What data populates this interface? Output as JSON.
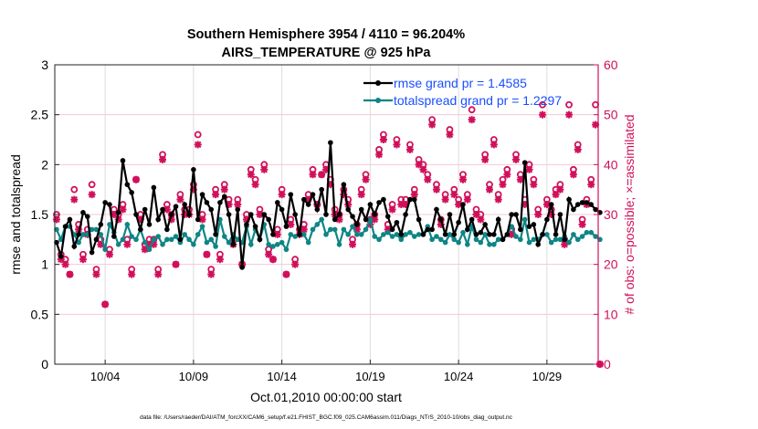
{
  "chart_data": {
    "type": "line",
    "title": [
      "Southern Hemisphere 3954 / 4110 = 96.204%",
      "AIRS_TEMPERATURE @ 925 hPa"
    ],
    "xlabel": "Oct.01,2010 00:00:00 start",
    "ylabel": "rmse and totalspread",
    "y2label": "# of obs: o=possible; ×=assimilated",
    "footnote": "data file: /Users/raeder/DAI/ATM_forcXX/CAM6_setup/f.e21.FHIST_BGC.f09_025.CAM6assim.011/Diags_NTrS_2010-10/obs_diag_output.nc",
    "xlim_days": [
      0.15,
      30.9
    ],
    "ylim": [
      0,
      3
    ],
    "y2lim": [
      0,
      60
    ],
    "x_ticks": [
      {
        "day": 3,
        "label": "10/04"
      },
      {
        "day": 8,
        "label": "10/09"
      },
      {
        "day": 13,
        "label": "10/14"
      },
      {
        "day": 18,
        "label": "10/19"
      },
      {
        "day": 23,
        "label": "10/24"
      },
      {
        "day": 28,
        "label": "10/29"
      }
    ],
    "y_ticks": [
      {
        "v": 0,
        "label": "0"
      },
      {
        "v": 0.5,
        "label": "0.5"
      },
      {
        "v": 1,
        "label": "1"
      },
      {
        "v": 1.5,
        "label": "1.5"
      },
      {
        "v": 2,
        "label": "2"
      },
      {
        "v": 2.5,
        "label": "2.5"
      },
      {
        "v": 3,
        "label": "3"
      }
    ],
    "y2_ticks": [
      {
        "v": 0,
        "label": "0"
      },
      {
        "v": 10,
        "label": "10"
      },
      {
        "v": 20,
        "label": "20"
      },
      {
        "v": 30,
        "label": "30"
      },
      {
        "v": 40,
        "label": "40"
      },
      {
        "v": 50,
        "label": "50"
      },
      {
        "v": 60,
        "label": "60"
      }
    ],
    "grid": true,
    "legend_position": "top-right",
    "x_start_day": 0.25,
    "x_step_days": 0.25,
    "series": [
      {
        "name": "rmse grand pr = 1.4585",
        "color": "#000000",
        "axis": "left",
        "values": [
          1.22,
          1.08,
          1.38,
          1.45,
          1.18,
          1.3,
          1.52,
          1.48,
          1.12,
          1.25,
          1.4,
          1.62,
          1.6,
          1.28,
          1.52,
          2.04,
          1.8,
          1.72,
          1.5,
          1.35,
          1.55,
          1.4,
          1.77,
          1.45,
          1.55,
          1.35,
          1.5,
          1.58,
          1.25,
          1.6,
          1.5,
          1.95,
          1.45,
          1.7,
          1.62,
          1.55,
          1.3,
          1.62,
          1.68,
          1.5,
          1.2,
          1.55,
          0.97,
          1.4,
          1.5,
          1.38,
          1.25,
          1.5,
          1.45,
          1.3,
          1.62,
          1.55,
          1.38,
          1.7,
          1.5,
          1.3,
          1.65,
          1.6,
          1.7,
          1.55,
          1.75,
          1.5,
          2.22,
          1.45,
          1.5,
          1.8,
          1.55,
          1.48,
          1.4,
          1.55,
          1.45,
          1.6,
          1.5,
          1.62,
          1.65,
          1.48,
          1.35,
          1.42,
          1.3,
          1.5,
          1.65,
          1.65,
          1.45,
          1.3,
          1.35,
          1.35,
          1.55,
          1.45,
          1.3,
          1.5,
          1.3,
          1.42,
          1.6,
          1.35,
          1.45,
          1.3,
          1.32,
          1.4,
          1.3,
          1.3,
          1.45,
          1.25,
          1.3,
          1.5,
          1.5,
          1.35,
          2.02,
          1.38,
          1.4,
          1.2,
          1.3,
          1.45,
          1.6,
          1.3,
          1.5,
          1.25,
          1.65,
          1.55,
          1.6,
          1.62,
          1.62,
          1.6,
          1.55,
          1.52
        ]
      },
      {
        "name": "totalspread grand pr = 1.2297",
        "color": "#0f8585",
        "axis": "left",
        "values": [
          1.35,
          1.25,
          1.38,
          1.38,
          1.3,
          1.22,
          1.3,
          1.3,
          1.35,
          1.35,
          1.3,
          1.15,
          1.4,
          1.32,
          1.2,
          1.25,
          1.4,
          1.28,
          1.25,
          1.35,
          1.22,
          1.15,
          1.25,
          1.28,
          1.2,
          1.25,
          1.25,
          1.28,
          1.22,
          1.3,
          1.25,
          1.2,
          1.3,
          1.38,
          1.22,
          1.25,
          1.18,
          1.45,
          1.28,
          1.22,
          1.3,
          1.25,
          1.22,
          1.38,
          1.2,
          1.35,
          1.25,
          1.4,
          1.2,
          1.18,
          1.2,
          1.22,
          1.15,
          1.3,
          1.28,
          1.3,
          1.3,
          1.22,
          1.35,
          1.4,
          1.45,
          1.3,
          1.35,
          1.35,
          1.2,
          1.35,
          1.3,
          1.38,
          1.3,
          1.3,
          1.35,
          1.45,
          1.28,
          1.25,
          1.3,
          1.32,
          1.28,
          1.3,
          1.25,
          1.3,
          1.32,
          1.28,
          1.3,
          1.3,
          1.38,
          1.25,
          1.28,
          1.25,
          1.22,
          1.3,
          1.25,
          1.22,
          1.32,
          1.2,
          1.38,
          1.25,
          1.22,
          1.3,
          1.2,
          1.2,
          1.25,
          1.25,
          1.3,
          1.38,
          1.28,
          1.25,
          1.45,
          1.22,
          1.25,
          1.25,
          1.3,
          1.3,
          1.22,
          1.25,
          1.25,
          1.28,
          1.22,
          1.3,
          1.25,
          1.28,
          1.32,
          1.32,
          1.28,
          1.25
        ]
      },
      {
        "name": "obs possible",
        "color": "#d0105a",
        "axis": "right",
        "marker": "o",
        "values": [
          30,
          22,
          21,
          18,
          35,
          28,
          22,
          27,
          36,
          19,
          25,
          12,
          23,
          31,
          30,
          32,
          25,
          19,
          37,
          30,
          24,
          25,
          25,
          19,
          42,
          32,
          30,
          20,
          34,
          31,
          31,
          36,
          46,
          30,
          22,
          19,
          35,
          22,
          36,
          33,
          25,
          33,
          20,
          30,
          39,
          37,
          31,
          40,
          23,
          21,
          27,
          35,
          18,
          29,
          21,
          27,
          28,
          34,
          39,
          32,
          38,
          40,
          37,
          31,
          30,
          35,
          33,
          25,
          28,
          35,
          38,
          29,
          30,
          43,
          46,
          28,
          32,
          45,
          33,
          33,
          44,
          35,
          41,
          40,
          38,
          49,
          36,
          29,
          34,
          47,
          35,
          33,
          38,
          34,
          51,
          31,
          30,
          42,
          36,
          45,
          34,
          37,
          39,
          27,
          42,
          38,
          33,
          40,
          37,
          31,
          52,
          33,
          31,
          35,
          36,
          25,
          52,
          39,
          44,
          29,
          33,
          37,
          52,
          0
        ]
      },
      {
        "name": "obs assimilated",
        "color": "#d0105a",
        "axis": "right",
        "marker": "*",
        "values": [
          29,
          21,
          20,
          18,
          33,
          27,
          21,
          26,
          34,
          18,
          24,
          12,
          22,
          30,
          29,
          31,
          24,
          18,
          37,
          29,
          23,
          24,
          24,
          18,
          41,
          31,
          29,
          20,
          33,
          30,
          30,
          35,
          44,
          29,
          22,
          18,
          34,
          21,
          35,
          32,
          24,
          32,
          20,
          29,
          38,
          36,
          30,
          39,
          22,
          21,
          26,
          34,
          18,
          28,
          20,
          26,
          27,
          33,
          38,
          32,
          38,
          39,
          36,
          30,
          29,
          34,
          32,
          24,
          27,
          34,
          37,
          28,
          29,
          42,
          45,
          27,
          31,
          44,
          32,
          32,
          43,
          34,
          40,
          39,
          37,
          48,
          35,
          28,
          33,
          46,
          34,
          32,
          37,
          33,
          49,
          30,
          29,
          41,
          35,
          44,
          33,
          36,
          38,
          26,
          41,
          37,
          32,
          39,
          36,
          30,
          50,
          32,
          30,
          34,
          35,
          24,
          50,
          38,
          43,
          28,
          32,
          36,
          48,
          0
        ]
      }
    ],
    "legend_text_color": "#1a4fff"
  }
}
